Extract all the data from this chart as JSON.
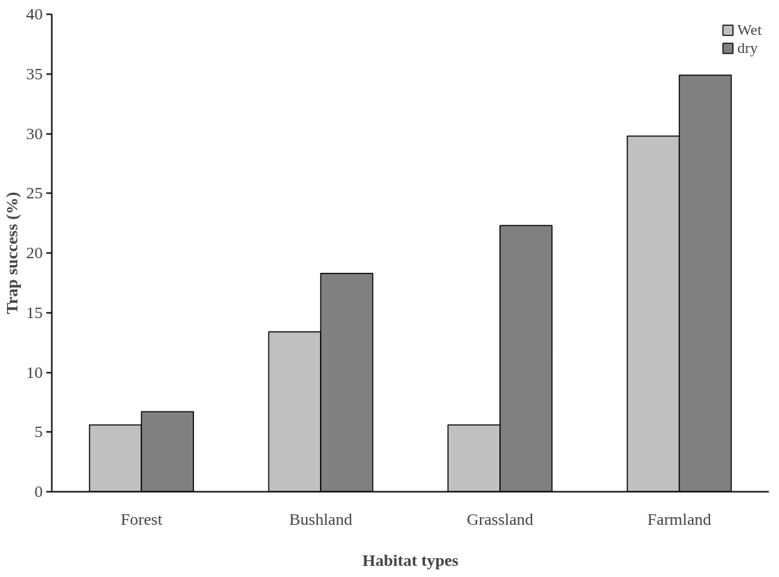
{
  "chart_data": {
    "type": "bar",
    "xlabel": "Habitat types",
    "ylabel": "Trap success (%)",
    "categories": [
      "Forest",
      "Bushland",
      "Grassland",
      "Farmland"
    ],
    "series": [
      {
        "name": "Wet",
        "color": "#c0c0c0",
        "values": [
          5.6,
          13.4,
          5.6,
          29.8
        ]
      },
      {
        "name": "dry",
        "color": "#808080",
        "values": [
          6.7,
          18.3,
          22.3,
          34.9
        ]
      }
    ],
    "ylim": [
      0,
      40
    ],
    "yticks": [
      0,
      5,
      10,
      15,
      20,
      25,
      30,
      35,
      40
    ],
    "grid": false,
    "legend": "top right"
  }
}
